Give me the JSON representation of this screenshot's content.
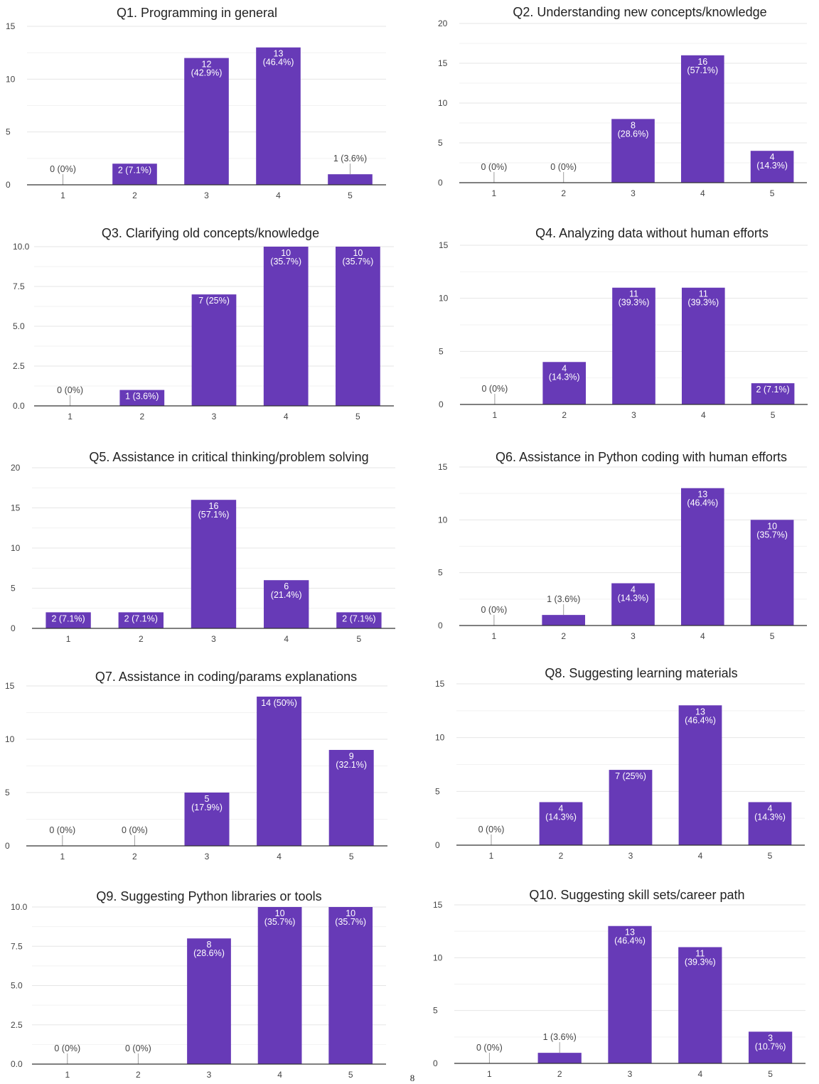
{
  "colors": {
    "bar": "#673ab7",
    "grid": "#e6e6e6",
    "axis": "#333333",
    "leader": "#9e9e9e"
  },
  "page_number": "8",
  "chart_data": [
    {
      "type": "bar",
      "title": "Q1. Programming in general",
      "categories": [
        "1",
        "2",
        "3",
        "4",
        "5"
      ],
      "values": [
        0,
        2,
        12,
        13,
        1
      ],
      "value_labels": [
        "0 (0%)",
        "2 (7.1%)",
        "12\n(42.9%)",
        "13\n(46.4%)",
        "1 (3.6%)"
      ],
      "ylim": [
        0,
        15
      ],
      "yticks": [
        "0",
        "5",
        "10",
        "15"
      ],
      "grid": true,
      "xlabel": "",
      "ylabel": ""
    },
    {
      "type": "bar",
      "title": "Q2. Understanding new concepts/knowledge",
      "categories": [
        "1",
        "2",
        "3",
        "4",
        "5"
      ],
      "values": [
        0,
        0,
        8,
        16,
        4
      ],
      "value_labels": [
        "0 (0%)",
        "0 (0%)",
        "8\n(28.6%)",
        "16\n(57.1%)",
        "4\n(14.3%)"
      ],
      "ylim": [
        0,
        20
      ],
      "yticks": [
        "0",
        "5",
        "10",
        "15",
        "20"
      ],
      "grid": true,
      "xlabel": "",
      "ylabel": ""
    },
    {
      "type": "bar",
      "title": "Q3. Clarifying old concepts/knowledge",
      "categories": [
        "1",
        "2",
        "3",
        "4",
        "5"
      ],
      "values": [
        0,
        1,
        7,
        10,
        10
      ],
      "value_labels": [
        "0 (0%)",
        "1 (3.6%)",
        "7 (25%)",
        "10\n(35.7%)",
        "10\n(35.7%)"
      ],
      "ylim": [
        0,
        10
      ],
      "yticks": [
        "0.0",
        "2.5",
        "5.0",
        "7.5",
        "10.0"
      ],
      "grid": true,
      "xlabel": "",
      "ylabel": ""
    },
    {
      "type": "bar",
      "title": "Q4. Analyzing data without human efforts",
      "categories": [
        "1",
        "2",
        "3",
        "4",
        "5"
      ],
      "values": [
        0,
        4,
        11,
        11,
        2
      ],
      "value_labels": [
        "0 (0%)",
        "4\n(14.3%)",
        "11\n(39.3%)",
        "11\n(39.3%)",
        "2 (7.1%)"
      ],
      "ylim": [
        0,
        15
      ],
      "yticks": [
        "0",
        "5",
        "10",
        "15"
      ],
      "grid": true,
      "xlabel": "",
      "ylabel": ""
    },
    {
      "type": "bar",
      "title": "Q5. Assistance in critical thinking/problem solving",
      "categories": [
        "1",
        "2",
        "3",
        "4",
        "5"
      ],
      "values": [
        2,
        2,
        16,
        6,
        2
      ],
      "value_labels": [
        "2 (7.1%)",
        "2 (7.1%)",
        "16\n(57.1%)",
        "6\n(21.4%)",
        "2 (7.1%)"
      ],
      "ylim": [
        0,
        20
      ],
      "yticks": [
        "0",
        "5",
        "10",
        "15",
        "20"
      ],
      "grid": true,
      "xlabel": "",
      "ylabel": ""
    },
    {
      "type": "bar",
      "title": "Q6. Assistance in Python coding with human efforts",
      "categories": [
        "1",
        "2",
        "3",
        "4",
        "5"
      ],
      "values": [
        0,
        1,
        4,
        13,
        10
      ],
      "value_labels": [
        "0 (0%)",
        "1 (3.6%)",
        "4\n(14.3%)",
        "13\n(46.4%)",
        "10\n(35.7%)"
      ],
      "ylim": [
        0,
        15
      ],
      "yticks": [
        "0",
        "5",
        "10",
        "15"
      ],
      "grid": true,
      "xlabel": "",
      "ylabel": ""
    },
    {
      "type": "bar",
      "title": "Q7. Assistance in coding/params explanations",
      "categories": [
        "1",
        "2",
        "3",
        "4",
        "5"
      ],
      "values": [
        0,
        0,
        5,
        14,
        9
      ],
      "value_labels": [
        "0 (0%)",
        "0 (0%)",
        "5\n(17.9%)",
        "14 (50%)",
        "9\n(32.1%)"
      ],
      "ylim": [
        0,
        15
      ],
      "yticks": [
        "0",
        "5",
        "10",
        "15"
      ],
      "grid": true,
      "xlabel": "",
      "ylabel": ""
    },
    {
      "type": "bar",
      "title": "Q8. Suggesting learning materials",
      "categories": [
        "1",
        "2",
        "3",
        "4",
        "5"
      ],
      "values": [
        0,
        4,
        7,
        13,
        4
      ],
      "value_labels": [
        "0 (0%)",
        "4\n(14.3%)",
        "7 (25%)",
        "13\n(46.4%)",
        "4\n(14.3%)"
      ],
      "ylim": [
        0,
        15
      ],
      "yticks": [
        "0",
        "5",
        "10",
        "15"
      ],
      "grid": true,
      "xlabel": "",
      "ylabel": ""
    },
    {
      "type": "bar",
      "title": "Q9. Suggesting Python libraries or tools",
      "categories": [
        "1",
        "2",
        "3",
        "4",
        "5"
      ],
      "values": [
        0,
        0,
        8,
        10,
        10
      ],
      "value_labels": [
        "0 (0%)",
        "0 (0%)",
        "8\n(28.6%)",
        "10\n(35.7%)",
        "10\n(35.7%)"
      ],
      "ylim": [
        0,
        10
      ],
      "yticks": [
        "0.0",
        "2.5",
        "5.0",
        "7.5",
        "10.0"
      ],
      "grid": true,
      "xlabel": "",
      "ylabel": ""
    },
    {
      "type": "bar",
      "title": "Q10. Suggesting skill sets/career path",
      "categories": [
        "1",
        "2",
        "3",
        "4",
        "5"
      ],
      "values": [
        0,
        1,
        13,
        11,
        3
      ],
      "value_labels": [
        "0 (0%)",
        "1 (3.6%)",
        "13\n(46.4%)",
        "11\n(39.3%)",
        "3\n(10.7%)"
      ],
      "ylim": [
        0,
        15
      ],
      "yticks": [
        "0",
        "5",
        "10",
        "15"
      ],
      "grid": true,
      "xlabel": "",
      "ylabel": ""
    }
  ]
}
